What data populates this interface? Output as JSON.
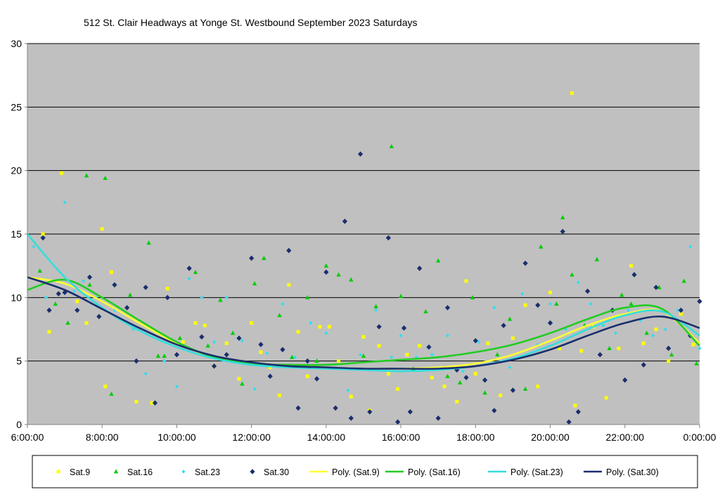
{
  "chart_data": {
    "type": "scatter",
    "title": "512 St. Clair Headways at Yonge St. Westbound September 2023  Saturdays",
    "xlabel": "",
    "ylabel": "",
    "xlim": [
      "6:00:00",
      "0:00:00"
    ],
    "ylim": [
      0,
      30
    ],
    "grid": true,
    "legend_position": "bottom",
    "x_ticks": [
      "6:00:00",
      "8:00:00",
      "10:00:00",
      "12:00:00",
      "14:00:00",
      "16:00:00",
      "18:00:00",
      "20:00:00",
      "22:00:00",
      "0:00:00"
    ],
    "y_ticks": [
      "0",
      "5",
      "10",
      "15",
      "20",
      "25",
      "30"
    ],
    "plot_background": "#c0c0c0",
    "series": [
      {
        "name": "Sat.9",
        "kind": "scatter",
        "marker": "square",
        "color": "#ffff00",
        "x": [
          "6:25",
          "6:35",
          "6:55",
          "7:20",
          "7:35",
          "8:00",
          "8:05",
          "8:15",
          "8:55",
          "9:20",
          "9:45",
          "10:10",
          "10:30",
          "10:45",
          "11:00",
          "11:20",
          "11:40",
          "12:00",
          "12:15",
          "12:30",
          "12:45",
          "13:00",
          "13:15",
          "13:30",
          "13:50",
          "14:05",
          "14:20",
          "14:40",
          "15:00",
          "15:10",
          "15:25",
          "15:40",
          "15:55",
          "16:10",
          "16:30",
          "16:50",
          "17:10",
          "17:30",
          "17:45",
          "18:00",
          "18:20",
          "18:40",
          "19:00",
          "19:20",
          "19:40",
          "20:00",
          "20:15",
          "20:35",
          "20:40",
          "20:50",
          "21:10",
          "21:30",
          "21:50",
          "22:10",
          "22:30",
          "22:50",
          "23:10",
          "23:30",
          "23:50"
        ],
        "y": [
          15,
          7.3,
          19.8,
          9.7,
          8.0,
          15.4,
          3.0,
          12.0,
          1.8,
          1.7,
          10.7,
          6.5,
          8.0,
          7.8,
          4.6,
          6.4,
          3.6,
          8.0,
          5.7,
          4.5,
          2.3,
          11.0,
          7.3,
          3.8,
          7.7,
          7.7,
          5.0,
          2.2,
          6.9,
          1.1,
          6.2,
          4.0,
          2.8,
          5.5,
          6.2,
          3.7,
          3.0,
          1.8,
          11.3,
          4.0,
          6.4,
          2.3,
          6.8,
          9.4,
          3.0,
          10.4,
          6.0,
          26.1,
          1.5,
          5.8,
          7.7,
          2.1,
          6.0,
          12.5,
          6.4,
          7.5,
          5.0,
          8.7,
          6.3
        ]
      },
      {
        "name": "Sat.16",
        "kind": "scatter",
        "marker": "triangle",
        "color": "#00cc00",
        "x": [
          "6:20",
          "6:45",
          "7:05",
          "7:35",
          "7:40",
          "8:05",
          "8:15",
          "8:45",
          "9:15",
          "9:30",
          "9:40",
          "10:05",
          "10:30",
          "10:50",
          "11:10",
          "11:30",
          "11:45",
          "12:05",
          "12:20",
          "12:45",
          "13:05",
          "13:30",
          "13:45",
          "14:00",
          "14:20",
          "14:40",
          "15:00",
          "15:20",
          "15:45",
          "16:00",
          "16:20",
          "16:40",
          "17:00",
          "17:15",
          "17:35",
          "17:55",
          "18:15",
          "18:35",
          "18:55",
          "19:20",
          "19:45",
          "20:10",
          "20:20",
          "20:35",
          "20:55",
          "21:15",
          "21:35",
          "21:55",
          "22:10",
          "22:35",
          "22:55",
          "23:15",
          "23:35",
          "23:55"
        ],
        "y": [
          12.1,
          9.5,
          8.0,
          19.6,
          11.0,
          19.4,
          2.4,
          10.2,
          14.3,
          5.4,
          5.4,
          6.8,
          12.0,
          6.2,
          9.8,
          7.2,
          3.2,
          11.1,
          13.1,
          8.6,
          5.3,
          10.0,
          5.0,
          12.5,
          11.8,
          11.4,
          5.4,
          9.3,
          21.9,
          10.1,
          4.4,
          8.9,
          12.9,
          3.8,
          3.3,
          10.0,
          2.5,
          5.5,
          8.3,
          2.8,
          14.0,
          9.5,
          16.3,
          11.8,
          7.8,
          13.0,
          6.0,
          10.2,
          9.5,
          7.2,
          10.8,
          5.5,
          11.3,
          4.8
        ]
      },
      {
        "name": "Sat.23",
        "kind": "scatter",
        "marker": "diamond-small",
        "color": "#33ddee",
        "x": [
          "6:10",
          "6:30",
          "7:00",
          "7:15",
          "7:30",
          "7:50",
          "8:20",
          "8:50",
          "9:10",
          "9:40",
          "10:00",
          "10:20",
          "10:40",
          "11:00",
          "11:20",
          "11:45",
          "12:05",
          "12:25",
          "12:50",
          "13:10",
          "13:35",
          "14:00",
          "14:15",
          "14:35",
          "14:55",
          "15:20",
          "15:45",
          "16:00",
          "16:25",
          "16:50",
          "17:15",
          "17:40",
          "18:05",
          "18:30",
          "18:55",
          "19:15",
          "19:40",
          "20:00",
          "20:25",
          "20:45",
          "21:05",
          "21:25",
          "21:45",
          "22:05",
          "22:25",
          "22:45",
          "23:05",
          "23:25",
          "23:45",
          "0:00"
        ],
        "y": [
          14.0,
          10.0,
          17.5,
          10.5,
          11.3,
          10.0,
          9.0,
          7.5,
          4.0,
          5.0,
          3.0,
          11.5,
          10.0,
          6.5,
          10.0,
          6.6,
          2.8,
          5.6,
          9.5,
          5.3,
          8.0,
          7.2,
          4.5,
          2.7,
          5.5,
          9.0,
          5.3,
          7.0,
          5.3,
          5.5,
          7.0,
          4.2,
          6.5,
          9.2,
          4.5,
          10.3,
          6.3,
          9.5,
          7.5,
          11.2,
          9.5,
          7.8,
          7.2,
          9.0,
          8.2,
          7.0,
          7.5,
          9.0,
          14.0,
          6.0
        ]
      },
      {
        "name": "Sat.30",
        "kind": "scatter",
        "marker": "diamond",
        "color": "#1a2e6e",
        "x": [
          "6:25",
          "6:35",
          "6:50",
          "7:00",
          "7:20",
          "7:40",
          "7:55",
          "8:20",
          "8:40",
          "8:55",
          "9:10",
          "9:25",
          "9:45",
          "10:00",
          "10:20",
          "10:40",
          "11:00",
          "11:20",
          "11:40",
          "12:00",
          "12:15",
          "12:30",
          "12:50",
          "13:00",
          "13:15",
          "13:30",
          "13:45",
          "14:00",
          "14:15",
          "14:30",
          "14:40",
          "14:55",
          "15:10",
          "15:25",
          "15:40",
          "15:55",
          "16:05",
          "16:15",
          "16:30",
          "16:45",
          "17:00",
          "17:15",
          "17:30",
          "17:45",
          "18:00",
          "18:15",
          "18:30",
          "18:45",
          "19:00",
          "19:20",
          "19:40",
          "20:00",
          "20:20",
          "20:30",
          "20:45",
          "21:00",
          "21:20",
          "21:40",
          "22:00",
          "22:15",
          "22:30",
          "22:50",
          "23:10",
          "23:30",
          "23:45",
          "0:00"
        ],
        "y": [
          14.7,
          9.0,
          10.3,
          10.4,
          9.0,
          11.6,
          8.5,
          11.0,
          9.2,
          5.0,
          10.8,
          1.7,
          10.0,
          5.5,
          12.3,
          6.9,
          4.6,
          5.5,
          6.8,
          13.1,
          6.3,
          3.8,
          5.9,
          13.7,
          1.3,
          5.0,
          3.6,
          12.0,
          1.3,
          16.0,
          0.5,
          21.3,
          1.0,
          7.7,
          14.7,
          0.2,
          7.6,
          1.0,
          12.3,
          6.1,
          0.5,
          9.2,
          4.3,
          3.7,
          6.6,
          3.5,
          1.1,
          7.8,
          2.7,
          12.7,
          9.4,
          8.0,
          15.2,
          0.2,
          1.0,
          10.5,
          5.5,
          9.0,
          3.5,
          11.8,
          4.7,
          10.8,
          6.0,
          9.0,
          7.0,
          9.7
        ]
      },
      {
        "name": "Poly. (Sat.9)",
        "kind": "line",
        "color": "#ffff33",
        "x": [
          "6:00",
          "7:00",
          "8:00",
          "9:00",
          "10:00",
          "11:00",
          "12:00",
          "13:00",
          "14:00",
          "15:00",
          "16:00",
          "17:00",
          "18:00",
          "19:00",
          "20:00",
          "21:00",
          "22:00",
          "23:00",
          "0:00"
        ],
        "y": [
          11.6,
          11.1,
          9.7,
          8.0,
          6.4,
          5.3,
          4.8,
          4.6,
          4.5,
          4.4,
          4.4,
          4.5,
          4.8,
          5.5,
          6.6,
          7.8,
          8.7,
          8.9,
          6.4
        ]
      },
      {
        "name": "Poly. (Sat.16)",
        "kind": "line",
        "color": "#22cc22",
        "x": [
          "6:00",
          "7:00",
          "8:00",
          "9:00",
          "10:00",
          "11:00",
          "12:00",
          "13:00",
          "14:00",
          "15:00",
          "16:00",
          "17:00",
          "18:00",
          "19:00",
          "20:00",
          "21:00",
          "22:00",
          "23:00",
          "0:00"
        ],
        "y": [
          10.6,
          11.4,
          10.0,
          8.2,
          6.5,
          5.3,
          4.8,
          4.7,
          4.7,
          4.9,
          5.1,
          5.3,
          5.7,
          6.3,
          7.2,
          8.3,
          9.2,
          9.1,
          6.2
        ]
      },
      {
        "name": "Poly. (Sat.23)",
        "kind": "line",
        "color": "#33dddd",
        "x": [
          "6:00",
          "7:00",
          "8:00",
          "9:00",
          "10:00",
          "11:00",
          "12:00",
          "13:00",
          "14:00",
          "15:00",
          "16:00",
          "17:00",
          "18:00",
          "19:00",
          "20:00",
          "21:00",
          "22:00",
          "23:00",
          "0:00"
        ],
        "y": [
          15.0,
          11.6,
          9.2,
          7.4,
          6.1,
          5.2,
          4.7,
          4.5,
          4.4,
          4.3,
          4.2,
          4.3,
          4.6,
          5.2,
          6.2,
          7.5,
          8.6,
          8.9,
          7.0
        ]
      },
      {
        "name": "Poly. (Sat.30)",
        "kind": "line",
        "color": "#1a2e6e",
        "x": [
          "6:00",
          "7:00",
          "8:00",
          "9:00",
          "10:00",
          "11:00",
          "12:00",
          "13:00",
          "14:00",
          "15:00",
          "16:00",
          "17:00",
          "18:00",
          "19:00",
          "20:00",
          "21:00",
          "22:00",
          "23:00",
          "0:00"
        ],
        "y": [
          11.6,
          10.6,
          9.1,
          7.6,
          6.3,
          5.4,
          4.9,
          4.6,
          4.5,
          4.4,
          4.4,
          4.4,
          4.6,
          5.1,
          5.9,
          7.0,
          8.0,
          8.5,
          7.6
        ]
      }
    ]
  }
}
